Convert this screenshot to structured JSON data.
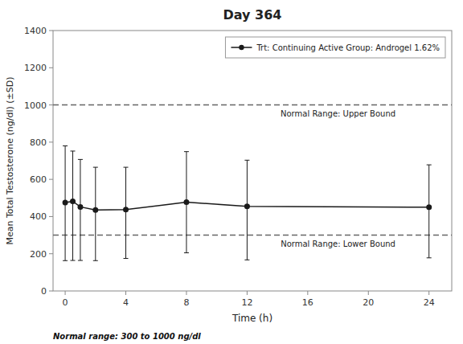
{
  "chart_data": {
    "type": "line",
    "title": "Day 364",
    "x_label": "Time (h)",
    "y_label": "Mean Total Testosterone (ng/dl) (±SD)",
    "x": [
      0,
      0.5,
      1,
      2,
      4,
      8,
      12,
      24
    ],
    "series": [
      {
        "name": "Trt: Continuing Active Group: Androgel 1.62%",
        "color": "#1a1a1a",
        "marker": "circle",
        "values": [
          475,
          482,
          452,
          435,
          437,
          477,
          455,
          450
        ],
        "error_upper": [
          305,
          270,
          255,
          230,
          228,
          272,
          248,
          228
        ],
        "error_lower": [
          312,
          318,
          288,
          272,
          262,
          272,
          288,
          272
        ]
      }
    ],
    "reference_lines": [
      {
        "value": 1000,
        "label": "Normal Range: Upper Bound",
        "color": "#666666",
        "line_style": "dashed"
      },
      {
        "value": 300,
        "label": "Normal Range: Lower Bound",
        "color": "#666666",
        "line_style": "dashed"
      }
    ],
    "footnote": "Normal range: 300 to 1000 ng/dl",
    "xlim": [
      -0.8,
      25.5
    ],
    "ylim": [
      0,
      1400
    ],
    "xticks": [
      0,
      4,
      8,
      12,
      16,
      20,
      24
    ],
    "yticks": [
      0,
      200,
      400,
      600,
      800,
      1000,
      1200,
      1400
    ],
    "grid": false,
    "legend": "upper right"
  }
}
